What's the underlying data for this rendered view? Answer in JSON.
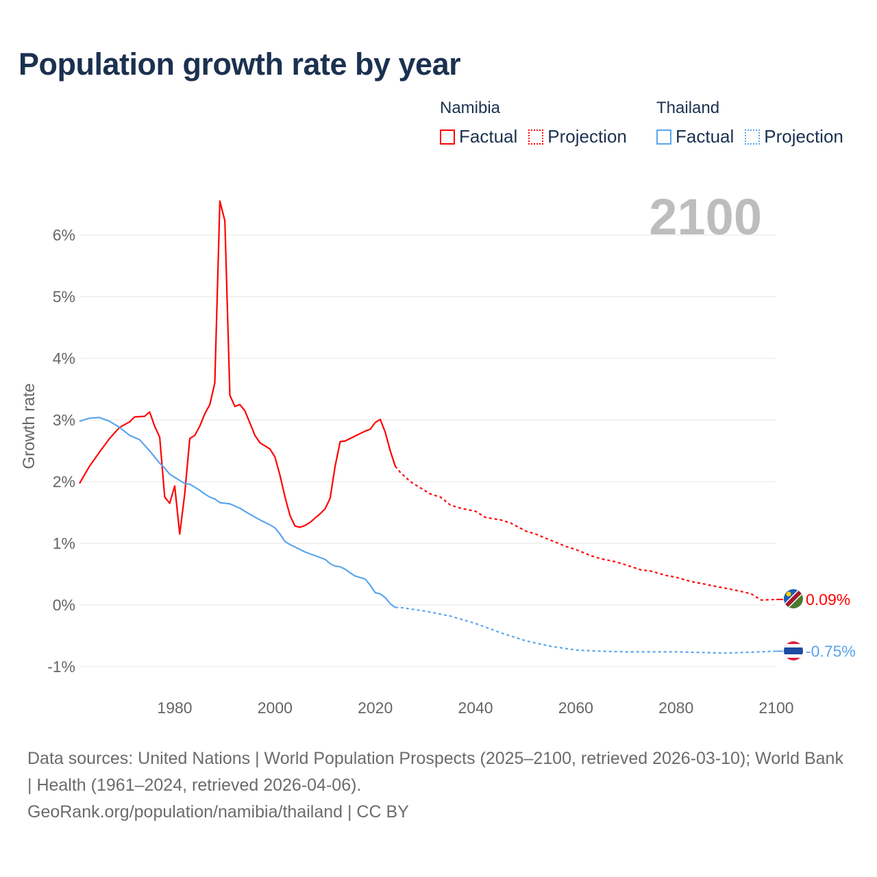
{
  "title": "Population growth rate by year",
  "legend": [
    {
      "country": "Namibia",
      "factual_label": "Factual",
      "projection_label": "Projection",
      "color": "#ff0000"
    },
    {
      "country": "Thailand",
      "factual_label": "Factual",
      "projection_label": "Projection",
      "color": "#5aa5ec"
    }
  ],
  "year_label": "2100",
  "footer": {
    "sources": "Data sources: United Nations | World Population Prospects (2025–2100, retrieved 2026-03-10); World Bank | Health (1961–2024, retrieved 2026-04-06).",
    "credit": "GeoRank.org/population/namibia/thailand | CC BY"
  },
  "chart_data": {
    "type": "line",
    "title": "Population growth rate by year",
    "xlabel": "",
    "ylabel": "Growth rate",
    "xlim": [
      1961,
      2100
    ],
    "ylim": [
      -1.2,
      6.7
    ],
    "grid": true,
    "x_ticks": [
      1980,
      2000,
      2020,
      2040,
      2060,
      2080,
      2100
    ],
    "x_tick_labels": [
      "1980",
      "2000",
      "2020",
      "2040",
      "2060",
      "2080",
      "2100"
    ],
    "y_ticks": [
      -1,
      0,
      1,
      2,
      3,
      4,
      5,
      6
    ],
    "y_tick_labels": [
      "-1%",
      "0%",
      "1%",
      "2%",
      "3%",
      "4%",
      "5%",
      "6%"
    ],
    "end_labels": [
      {
        "series": "Namibia",
        "value": 0.09,
        "label": "0.09%"
      },
      {
        "series": "Thailand",
        "value": -0.75,
        "label": "-0.75%"
      }
    ],
    "series": [
      {
        "name": "Namibia",
        "segment": "Factual",
        "color": "#ff0000",
        "points": [
          [
            1961,
            1.97
          ],
          [
            1963,
            2.25
          ],
          [
            1965,
            2.48
          ],
          [
            1967,
            2.7
          ],
          [
            1969,
            2.88
          ],
          [
            1971,
            2.97
          ],
          [
            1972,
            3.05
          ],
          [
            1974,
            3.06
          ],
          [
            1975,
            3.13
          ],
          [
            1976,
            2.9
          ],
          [
            1977,
            2.72
          ],
          [
            1978,
            1.75
          ],
          [
            1979,
            1.65
          ],
          [
            1980,
            1.93
          ],
          [
            1981,
            1.15
          ],
          [
            1982,
            1.8
          ],
          [
            1983,
            2.7
          ],
          [
            1984,
            2.75
          ],
          [
            1985,
            2.9
          ],
          [
            1986,
            3.1
          ],
          [
            1987,
            3.25
          ],
          [
            1988,
            3.6
          ],
          [
            1989,
            6.55
          ],
          [
            1990,
            6.23
          ],
          [
            1991,
            3.4
          ],
          [
            1992,
            3.22
          ],
          [
            1993,
            3.25
          ],
          [
            1994,
            3.15
          ],
          [
            1995,
            2.95
          ],
          [
            1996,
            2.75
          ],
          [
            1997,
            2.63
          ],
          [
            1998,
            2.58
          ],
          [
            1999,
            2.53
          ],
          [
            2000,
            2.4
          ],
          [
            2001,
            2.1
          ],
          [
            2002,
            1.75
          ],
          [
            2003,
            1.45
          ],
          [
            2004,
            1.28
          ],
          [
            2005,
            1.26
          ],
          [
            2006,
            1.29
          ],
          [
            2007,
            1.34
          ],
          [
            2008,
            1.41
          ],
          [
            2009,
            1.48
          ],
          [
            2010,
            1.56
          ],
          [
            2011,
            1.73
          ],
          [
            2012,
            2.25
          ],
          [
            2013,
            2.65
          ],
          [
            2014,
            2.66
          ],
          [
            2015,
            2.7
          ],
          [
            2016,
            2.74
          ],
          [
            2017,
            2.78
          ],
          [
            2018,
            2.82
          ],
          [
            2019,
            2.85
          ],
          [
            2020,
            2.96
          ],
          [
            2021,
            3.01
          ],
          [
            2022,
            2.8
          ],
          [
            2023,
            2.5
          ],
          [
            2024,
            2.25
          ]
        ]
      },
      {
        "name": "Namibia",
        "segment": "Projection",
        "color": "#ff0000",
        "points": [
          [
            2024,
            2.25
          ],
          [
            2025,
            2.15
          ],
          [
            2027,
            2.0
          ],
          [
            2029,
            1.9
          ],
          [
            2031,
            1.8
          ],
          [
            2033,
            1.75
          ],
          [
            2035,
            1.62
          ],
          [
            2037,
            1.57
          ],
          [
            2040,
            1.52
          ],
          [
            2042,
            1.42
          ],
          [
            2045,
            1.38
          ],
          [
            2047,
            1.33
          ],
          [
            2050,
            1.2
          ],
          [
            2052,
            1.15
          ],
          [
            2055,
            1.05
          ],
          [
            2058,
            0.95
          ],
          [
            2060,
            0.9
          ],
          [
            2063,
            0.8
          ],
          [
            2065,
            0.75
          ],
          [
            2068,
            0.7
          ],
          [
            2070,
            0.65
          ],
          [
            2073,
            0.57
          ],
          [
            2075,
            0.55
          ],
          [
            2078,
            0.48
          ],
          [
            2080,
            0.45
          ],
          [
            2083,
            0.38
          ],
          [
            2085,
            0.35
          ],
          [
            2088,
            0.3
          ],
          [
            2090,
            0.27
          ],
          [
            2093,
            0.22
          ],
          [
            2095,
            0.18
          ],
          [
            2097,
            0.08
          ],
          [
            2100,
            0.09
          ]
        ]
      },
      {
        "name": "Thailand",
        "segment": "Factual",
        "color": "#5aa5ec",
        "points": [
          [
            1961,
            2.98
          ],
          [
            1963,
            3.03
          ],
          [
            1965,
            3.04
          ],
          [
            1967,
            2.98
          ],
          [
            1969,
            2.88
          ],
          [
            1971,
            2.75
          ],
          [
            1973,
            2.68
          ],
          [
            1975,
            2.5
          ],
          [
            1977,
            2.3
          ],
          [
            1978,
            2.22
          ],
          [
            1979,
            2.12
          ],
          [
            1981,
            2.02
          ],
          [
            1982,
            1.97
          ],
          [
            1983,
            1.96
          ],
          [
            1985,
            1.86
          ],
          [
            1986,
            1.8
          ],
          [
            1987,
            1.75
          ],
          [
            1988,
            1.72
          ],
          [
            1989,
            1.66
          ],
          [
            1991,
            1.64
          ],
          [
            1993,
            1.57
          ],
          [
            1995,
            1.47
          ],
          [
            1997,
            1.38
          ],
          [
            1998,
            1.34
          ],
          [
            1999,
            1.3
          ],
          [
            2000,
            1.25
          ],
          [
            2001,
            1.15
          ],
          [
            2002,
            1.03
          ],
          [
            2003,
            0.98
          ],
          [
            2005,
            0.9
          ],
          [
            2006,
            0.86
          ],
          [
            2008,
            0.8
          ],
          [
            2010,
            0.74
          ],
          [
            2011,
            0.67
          ],
          [
            2012,
            0.63
          ],
          [
            2013,
            0.62
          ],
          [
            2014,
            0.58
          ],
          [
            2015,
            0.52
          ],
          [
            2016,
            0.47
          ],
          [
            2018,
            0.42
          ],
          [
            2019,
            0.32
          ],
          [
            2020,
            0.2
          ],
          [
            2021,
            0.18
          ],
          [
            2022,
            0.12
          ],
          [
            2023,
            0.02
          ],
          [
            2024,
            -0.04
          ]
        ]
      },
      {
        "name": "Thailand",
        "segment": "Projection",
        "color": "#5aa5ec",
        "points": [
          [
            2024,
            -0.04
          ],
          [
            2025,
            -0.04
          ],
          [
            2030,
            -0.1
          ],
          [
            2035,
            -0.18
          ],
          [
            2040,
            -0.3
          ],
          [
            2045,
            -0.45
          ],
          [
            2050,
            -0.58
          ],
          [
            2055,
            -0.67
          ],
          [
            2060,
            -0.73
          ],
          [
            2065,
            -0.75
          ],
          [
            2070,
            -0.76
          ],
          [
            2080,
            -0.76
          ],
          [
            2090,
            -0.78
          ],
          [
            2100,
            -0.75
          ]
        ]
      }
    ]
  }
}
